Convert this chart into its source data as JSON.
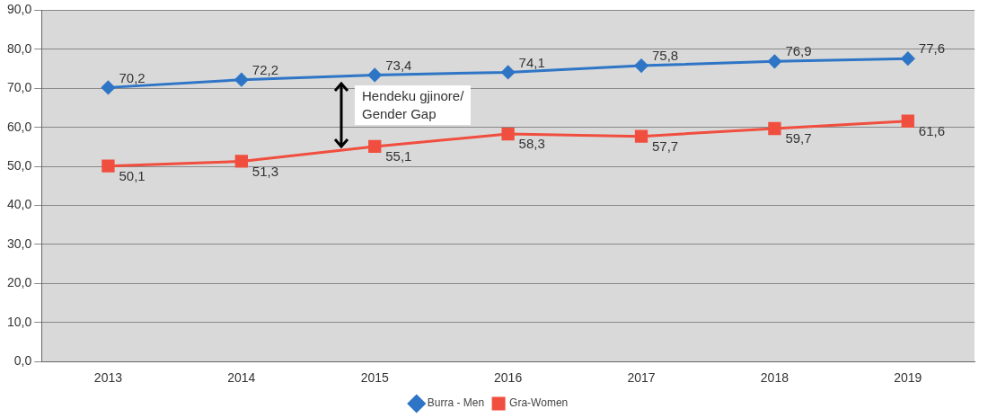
{
  "chart_data": {
    "type": "line",
    "categories": [
      "2013",
      "2014",
      "2015",
      "2016",
      "2017",
      "2018",
      "2019"
    ],
    "series": [
      {
        "name": "Burra - Men",
        "color": "#2e75c6",
        "marker": "diamond",
        "values": [
          70.2,
          72.2,
          73.4,
          74.1,
          75.8,
          76.9,
          77.6
        ],
        "value_labels": [
          "70,2",
          "72,2",
          "73,4",
          "74,1",
          "75,8",
          "76,9",
          "77,6"
        ]
      },
      {
        "name": "Gra-Women",
        "color": "#f04e3e",
        "marker": "square",
        "values": [
          50.1,
          51.3,
          55.1,
          58.3,
          57.7,
          59.7,
          61.6
        ],
        "value_labels": [
          "50,1",
          "51,3",
          "55,1",
          "58,3",
          "57,7",
          "59,7",
          "61,6"
        ]
      }
    ],
    "ylim": [
      0,
      90
    ],
    "yticks": [
      {
        "value": 0,
        "label": "0,0"
      },
      {
        "value": 10,
        "label": "10,0"
      },
      {
        "value": 20,
        "label": "20,0"
      },
      {
        "value": 30,
        "label": "30,0"
      },
      {
        "value": 40,
        "label": "40,0"
      },
      {
        "value": 50,
        "label": "50,0"
      },
      {
        "value": 60,
        "label": "60,0"
      },
      {
        "value": 70,
        "label": "70,0"
      },
      {
        "value": 80,
        "label": "80,0"
      },
      {
        "value": 90,
        "label": "90,0"
      }
    ],
    "grid": "y",
    "legend": "bottom",
    "annotations": [
      "Hendeku gjinore/\nGender Gap"
    ]
  }
}
